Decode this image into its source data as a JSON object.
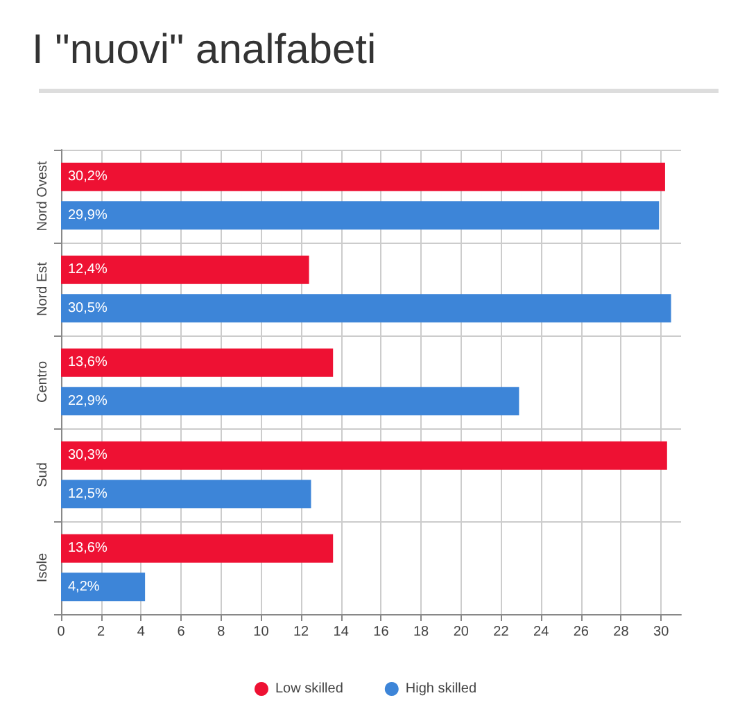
{
  "chart_data": {
    "type": "bar",
    "title": "I \"nuovi\" analfabeti",
    "orientation": "horizontal",
    "categories": [
      "Nord Ovest",
      "Nord Est",
      "Centro",
      "Sud",
      "Isole"
    ],
    "series": [
      {
        "name": "Low skilled",
        "color": "#ee1133",
        "values": [
          30.2,
          12.4,
          13.6,
          30.3,
          13.6
        ],
        "value_labels": [
          "30,2%",
          "12,4%",
          "13,6%",
          "30,3%",
          "13,6%"
        ]
      },
      {
        "name": "High skilled",
        "color": "#3d85d8",
        "values": [
          29.9,
          30.5,
          22.9,
          12.5,
          4.2
        ],
        "value_labels": [
          "29,9%",
          "30,5%",
          "22,9%",
          "12,5%",
          "4,2%"
        ]
      }
    ],
    "xlim": [
      0,
      31
    ],
    "xticks": [
      0,
      2,
      4,
      6,
      8,
      10,
      12,
      14,
      16,
      18,
      20,
      22,
      24,
      26,
      28,
      30
    ],
    "grid": "x",
    "legend": "bottom"
  }
}
